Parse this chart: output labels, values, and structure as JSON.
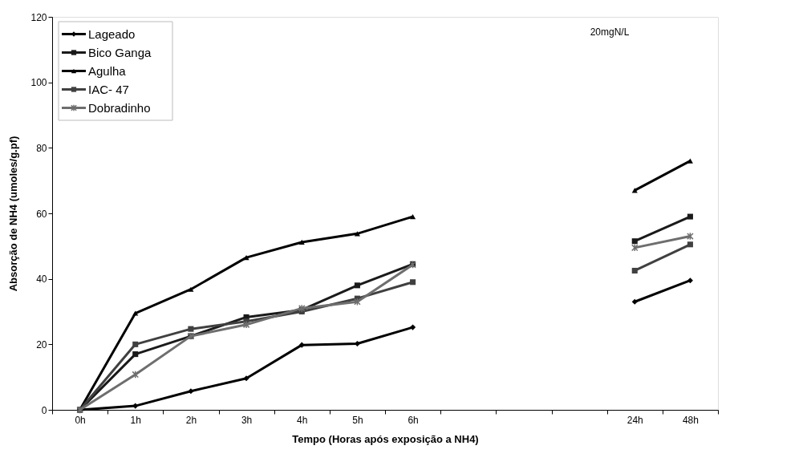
{
  "chart_data": {
    "type": "line",
    "xlabel": "Tempo (Horas após exposição a NH4)",
    "ylabel": "Absorção de NH4 (umoles/g.pf)",
    "annotations": [
      "20mgN/L"
    ],
    "categories": [
      "0h",
      "1h",
      "2h",
      "3h",
      "4h",
      "5h",
      "6h",
      null,
      null,
      null,
      "24h",
      "48h"
    ],
    "ylim": [
      0,
      120
    ],
    "yticks": [
      0,
      20,
      40,
      60,
      80,
      100,
      120
    ],
    "grid": false,
    "legend": "top left",
    "line_style": "solid",
    "series": [
      {
        "name": "Lageado",
        "color": "#000000",
        "marker": "diamond",
        "values": [
          0,
          1.2,
          5.7,
          9.6,
          19.8,
          20.2,
          25.2,
          null,
          null,
          null,
          33,
          39.5
        ]
      },
      {
        "name": "Bico Ganga",
        "color": "#1a1a1a",
        "marker": "square",
        "values": [
          0,
          17,
          22.5,
          28.3,
          30.5,
          38,
          44.5,
          null,
          null,
          null,
          51.5,
          59
        ]
      },
      {
        "name": "Agulha",
        "color": "#000000",
        "marker": "triangle",
        "values": [
          0,
          29.5,
          36.8,
          46.5,
          51.2,
          53.8,
          59,
          null,
          null,
          null,
          67,
          76
        ]
      },
      {
        "name": "IAC- 47",
        "color": "#404040",
        "marker": "square",
        "values": [
          0,
          20,
          24.7,
          27,
          30,
          34,
          39,
          null,
          null,
          null,
          42.5,
          50.5
        ]
      },
      {
        "name": "Dobradinho",
        "color": "#6e6e6e",
        "marker": "cross",
        "values": [
          0,
          10.8,
          22.5,
          26,
          31,
          33,
          44.3,
          null,
          null,
          null,
          49.5,
          53
        ]
      }
    ]
  }
}
